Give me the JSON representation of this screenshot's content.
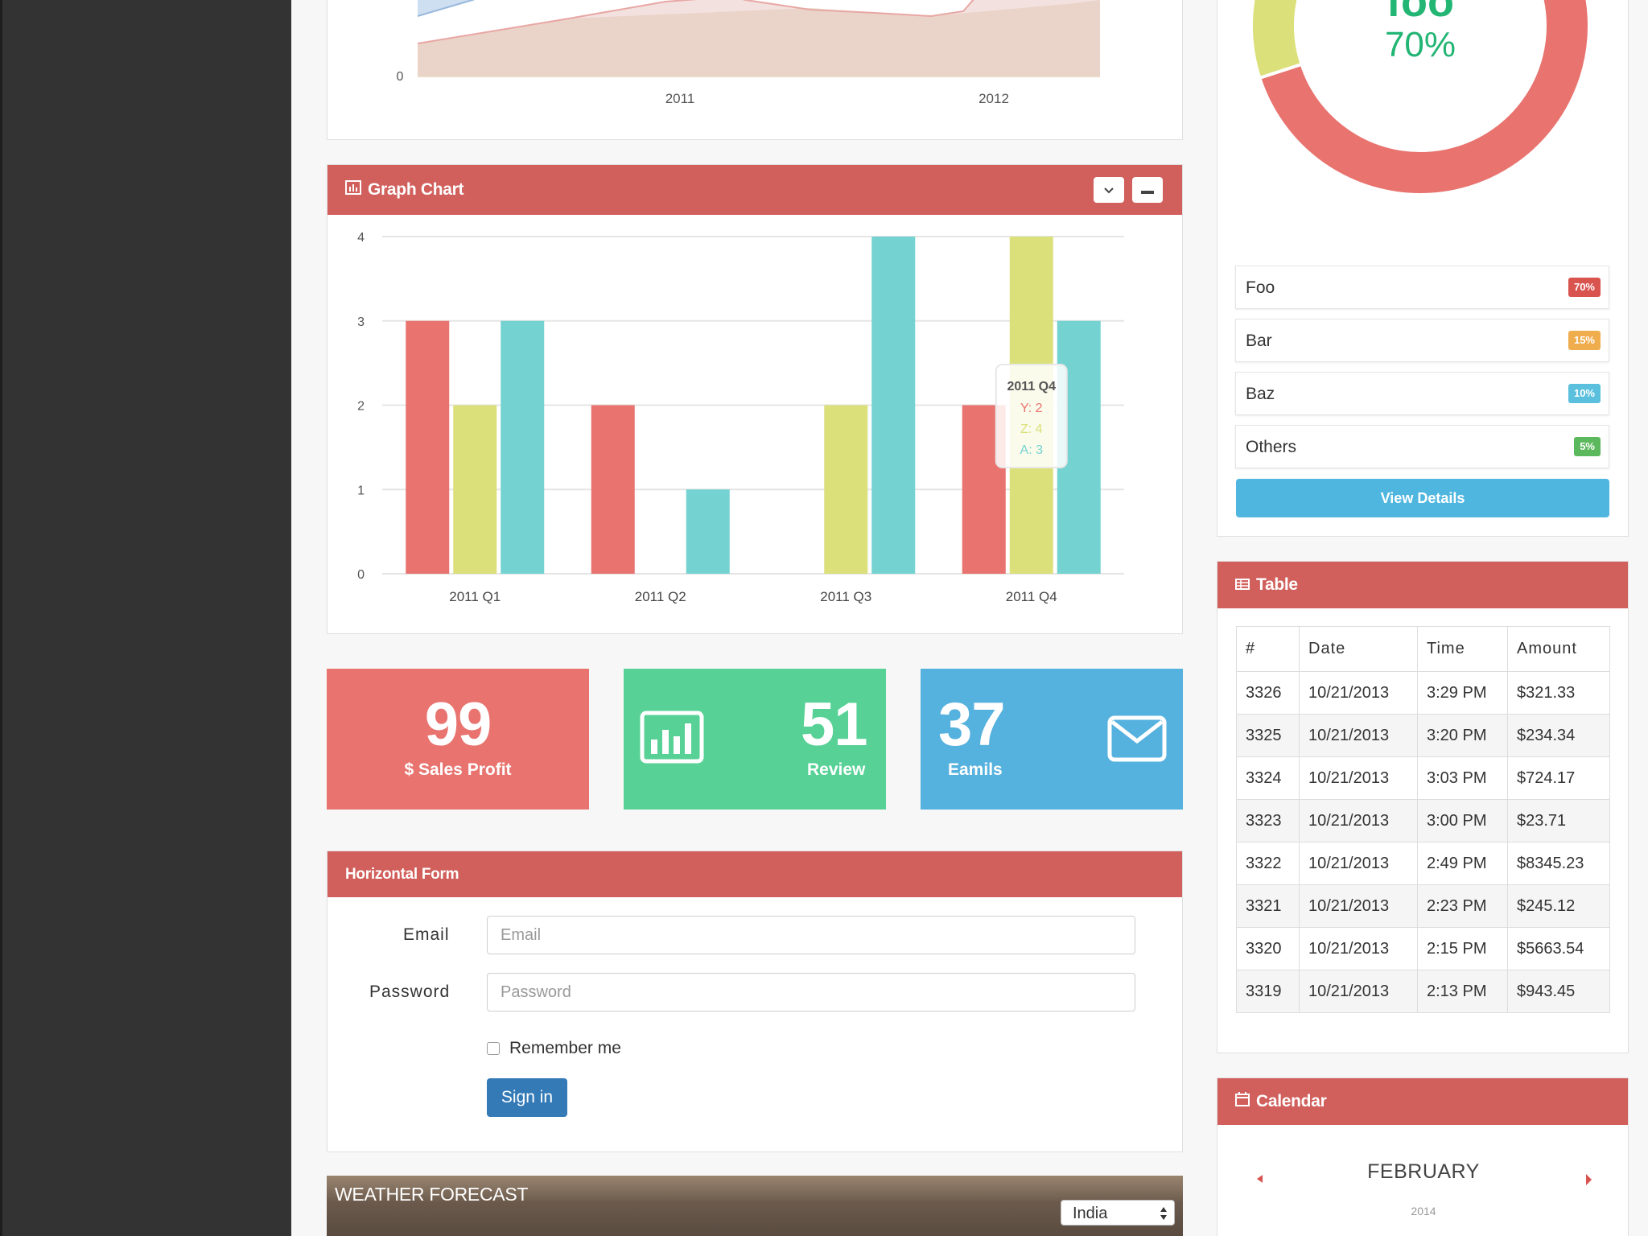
{
  "colors": {
    "red": "#e8736f",
    "yellow": "#dbe07a",
    "teal": "#74d2d0",
    "green": "#57d196",
    "blue": "#55b1de",
    "header": "#d15f5c"
  },
  "area_chart": {
    "y_tick": "0",
    "x_ticks": [
      "2011",
      "2012"
    ]
  },
  "donut": {
    "label_top": "foo",
    "percent": "70%",
    "segments": [
      {
        "name": "Foo",
        "value": 70,
        "color": "#e8736f"
      },
      {
        "name": "Bar",
        "value": 15,
        "color": "#dbe07a"
      },
      {
        "name": "Baz",
        "value": 10,
        "color": "#74d2d0"
      },
      {
        "name": "Others",
        "value": 5,
        "color": "#8fdbb4"
      }
    ]
  },
  "legend": [
    {
      "label": "Foo",
      "badge": "70%",
      "color": "#d9534f"
    },
    {
      "label": "Bar",
      "badge": "15%",
      "color": "#f0ad4e"
    },
    {
      "label": "Baz",
      "badge": "10%",
      "color": "#5bc0de"
    },
    {
      "label": "Others",
      "badge": "5%",
      "color": "#5cb85c"
    }
  ],
  "view_details": "View Details",
  "graph_panel": {
    "title": "Graph Chart"
  },
  "chart_data": {
    "type": "bar",
    "categories": [
      "2011 Q1",
      "2011 Q2",
      "2011 Q3",
      "2011 Q4"
    ],
    "series": [
      {
        "name": "Y",
        "values": [
          3,
          2,
          0,
          2
        ]
      },
      {
        "name": "Z",
        "values": [
          2,
          0,
          2,
          4
        ]
      },
      {
        "name": "A",
        "values": [
          3,
          1,
          4,
          3
        ]
      }
    ],
    "ylim": [
      0,
      4
    ],
    "yticks": [
      "0",
      "1",
      "2",
      "3",
      "4"
    ],
    "grid": true,
    "tooltip": {
      "title": "2011 Q4",
      "lines": [
        "Y: 2",
        "Z: 4",
        "A: 3"
      ]
    }
  },
  "stats": [
    {
      "value": "99",
      "label": "$ Sales Profit"
    },
    {
      "value": "51",
      "label": "Review"
    },
    {
      "value": "37",
      "label": "Eamils"
    }
  ],
  "form": {
    "title": "Horizontal Form",
    "email_label": "Email",
    "email_placeholder": "Email",
    "password_label": "Password",
    "password_placeholder": "Password",
    "remember": "Remember me",
    "signin": "Sign in"
  },
  "weather": {
    "title": "WEATHER FORECAST",
    "location": "India"
  },
  "table": {
    "title": "Table",
    "headers": [
      "#",
      "Date",
      "Time",
      "Amount"
    ],
    "rows": [
      [
        "3326",
        "10/21/2013",
        "3:29 PM",
        "$321.33"
      ],
      [
        "3325",
        "10/21/2013",
        "3:20 PM",
        "$234.34"
      ],
      [
        "3324",
        "10/21/2013",
        "3:03 PM",
        "$724.17"
      ],
      [
        "3323",
        "10/21/2013",
        "3:00 PM",
        "$23.71"
      ],
      [
        "3322",
        "10/21/2013",
        "2:49 PM",
        "$8345.23"
      ],
      [
        "3321",
        "10/21/2013",
        "2:23 PM",
        "$245.12"
      ],
      [
        "3320",
        "10/21/2013",
        "2:15 PM",
        "$5663.54"
      ],
      [
        "3319",
        "10/21/2013",
        "2:13 PM",
        "$943.45"
      ]
    ]
  },
  "calendar": {
    "title": "Calendar",
    "month": "FEBRUARY",
    "year": "2014"
  }
}
